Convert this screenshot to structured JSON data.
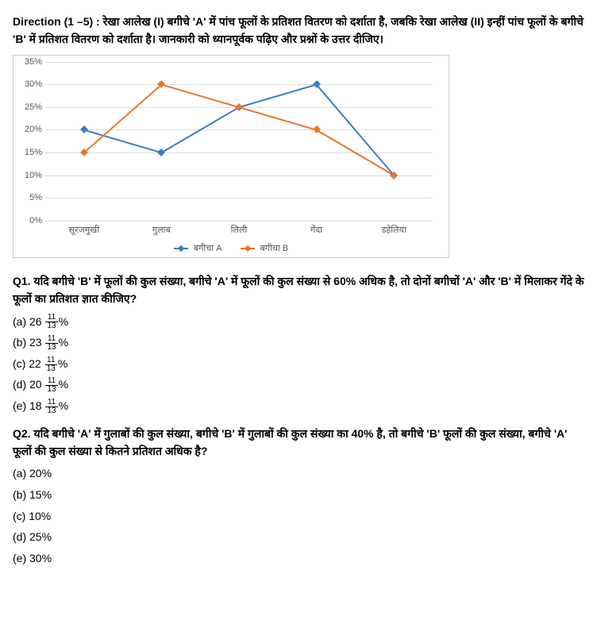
{
  "direction": "Direction (1 –5) : रेखा आलेख (I) बगीचे 'A' में पांच फूलों के प्रतिशत वितरण को दर्शाता है, जबकि रेखा आलेख (II) इन्हीं पांच फूलों के बगीचे 'B' में प्रतिशत वितरण को दर्शाता है। जानकारी को ध्यानपूर्वक पढ़िए और प्रश्नों के उत्तर दीजिए।",
  "chart": {
    "type": "line",
    "categories": [
      "सूरजमुखी",
      "गुलाब",
      "लिली",
      "गेंदा",
      "डहेलिया"
    ],
    "series": [
      {
        "name": "बगीचा A",
        "color": "#3a7ec2",
        "values": [
          20,
          15,
          25,
          30,
          10
        ]
      },
      {
        "name": "बगीचा B",
        "color": "#e8762c",
        "values": [
          15,
          30,
          25,
          20,
          10
        ]
      }
    ],
    "y_ticks": [
      "0%",
      "5%",
      "10%",
      "15%",
      "20%",
      "25%",
      "30%",
      "35%"
    ],
    "y_max": 35,
    "grid_color": "#dddddd",
    "background_color": "#ffffff",
    "marker_style": "diamond",
    "line_width": 2
  },
  "q1": {
    "prompt": "Q1. यदि बगीचे 'B' में फूलों की कुल संख्या, बगीचे 'A' में फूलों की कुल संख्या से 60% अधिक है, तो दोनों बगीचों 'A' और 'B' में मिलाकर गेंदे के फूलों का प्रतिशत ज्ञात कीजिए?",
    "opts_whole": {
      "a": "26",
      "b": "23",
      "c": "22",
      "d": "20",
      "e": "18"
    },
    "frac_num": "11",
    "frac_den": "13",
    "pct": "%",
    "labels": {
      "a": "(a) ",
      "b": "(b) ",
      "c": "(c) ",
      "d": "(d) ",
      "e": "(e) "
    }
  },
  "q2": {
    "prompt": "Q2. यदि बगीचे 'A' में गुलाबों की कुल संख्या, बगीचे 'B' में गुलाबों की कुल संख्या का 40% है, तो बगीचे 'B' फूलों की कुल संख्या, बगीचे 'A' फूलों की कुल संख्या से कितने प्रतिशत अधिक है?",
    "opts": {
      "a": "(a) 20%",
      "b": "(b) 15%",
      "c": "(c) 10%",
      "d": "(d) 25%",
      "e": "(e) 30%"
    }
  }
}
